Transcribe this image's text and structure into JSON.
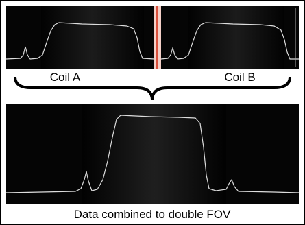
{
  "labels": {
    "coil_a": "Coil A",
    "coil_b": "Coil B"
  },
  "caption": "Data combined to double FOV"
}
